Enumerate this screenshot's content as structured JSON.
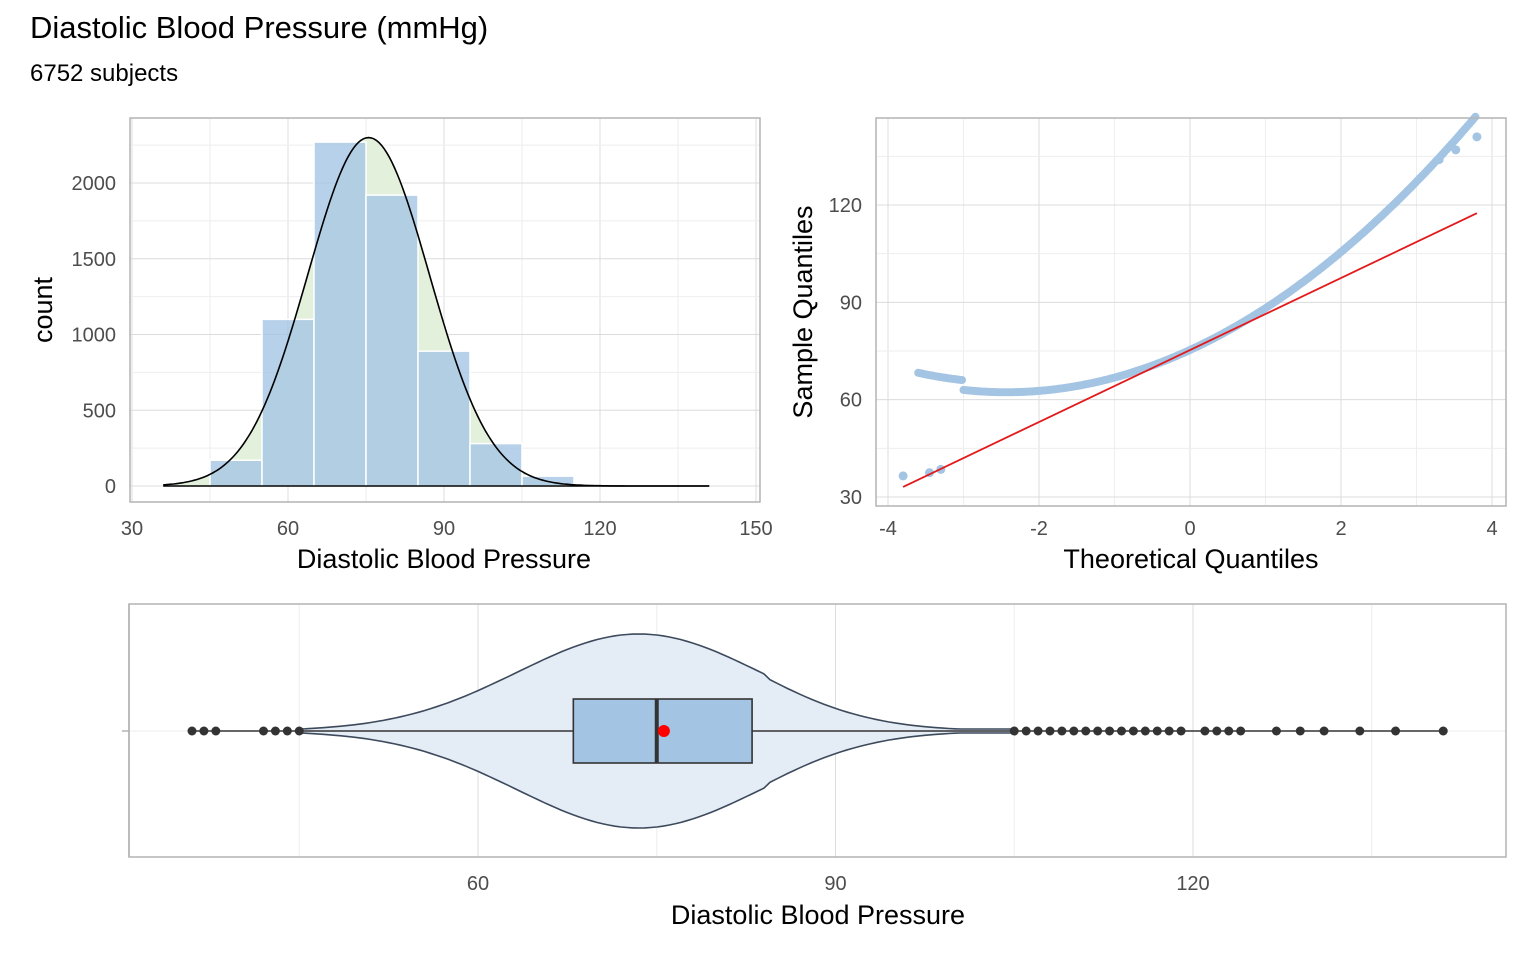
{
  "title": "Diastolic Blood Pressure (mmHg)",
  "subtitle": "6752 subjects",
  "colors": {
    "fill": "#a4c4e4",
    "density_fill": "#e2f0dc",
    "qq_line": "#e31a1c",
    "mean_point": "#ff0000",
    "point": "#333333",
    "violin_fill": "#e4ecf6"
  },
  "chart_data": [
    {
      "type": "bar",
      "name": "histogram",
      "xlabel": "Diastolic Blood Pressure",
      "ylabel": "count",
      "xlim": [
        30,
        150
      ],
      "ylim": [
        0,
        2300
      ],
      "xticks": [
        30,
        60,
        90,
        120,
        150
      ],
      "yticks": [
        0,
        500,
        1000,
        1500,
        2000
      ],
      "bins": [
        {
          "x0": 45,
          "x1": 55,
          "count": 170
        },
        {
          "x0": 55,
          "x1": 65,
          "count": 1100
        },
        {
          "x0": 65,
          "x1": 75,
          "count": 2270
        },
        {
          "x0": 75,
          "x1": 85,
          "count": 1920
        },
        {
          "x0": 85,
          "x1": 95,
          "count": 890
        },
        {
          "x0": 95,
          "x1": 105,
          "count": 280
        },
        {
          "x0": 105,
          "x1": 115,
          "count": 65
        }
      ],
      "normal_overlay": {
        "mean": 75.5,
        "sd": 11.7,
        "peak": 2300,
        "x_range": [
          36,
          141
        ]
      }
    },
    {
      "type": "scatter",
      "name": "normal-qq",
      "xlabel": "Theoretical Quantiles",
      "ylabel": "Sample Quantiles",
      "xlim": [
        -4,
        4
      ],
      "ylim": [
        30,
        140
      ],
      "xticks": [
        -4,
        -2,
        0,
        2,
        4
      ],
      "yticks": [
        30,
        60,
        90,
        120
      ],
      "qq_line": {
        "intercept": 75.3,
        "slope": 11.1,
        "x_range": [
          -3.8,
          3.8
        ]
      }
    },
    {
      "type": "boxplot",
      "name": "box-violin",
      "xlabel": "Diastolic Blood Pressure",
      "xlim": [
        45,
        143
      ],
      "xticks": [
        60,
        90,
        120
      ],
      "box": {
        "q1": 68,
        "median": 75,
        "q3": 83,
        "mean": 75.6,
        "whisker_low": 45,
        "whisker_high": 105
      },
      "outliers": [
        36,
        37,
        38,
        42,
        43,
        44,
        45,
        105,
        106,
        107,
        108,
        109,
        110,
        111,
        112,
        113,
        114,
        115,
        116,
        117,
        118,
        119,
        121,
        122,
        123,
        124,
        127,
        129,
        131,
        134,
        137,
        141
      ]
    }
  ]
}
